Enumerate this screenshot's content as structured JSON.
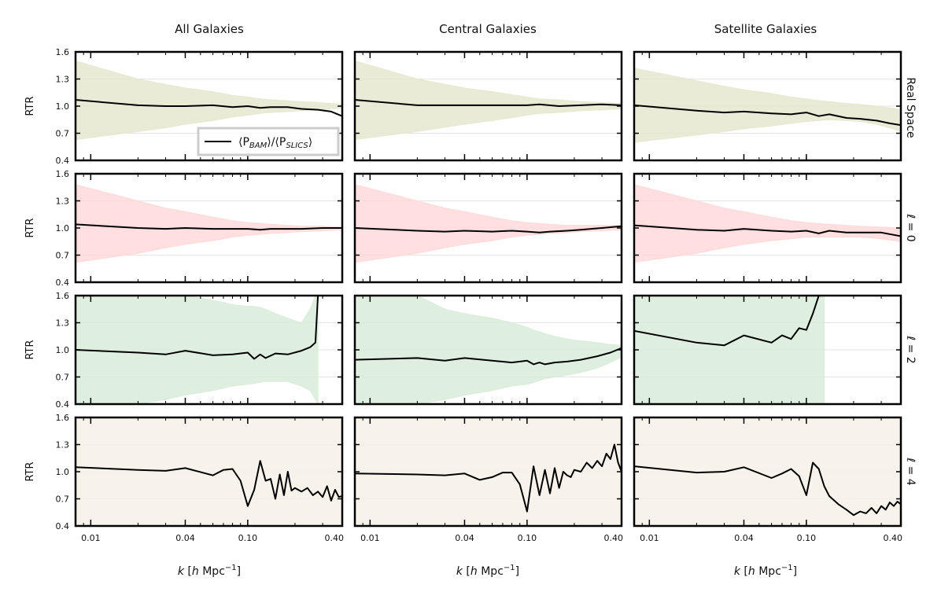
{
  "chart_data": {
    "type": "line",
    "figure": "ratio-grid",
    "columns": [
      "All Galaxies",
      "Central Galaxies",
      "Satellite Galaxies"
    ],
    "rows": [
      "Real Space",
      "ℓ = 0",
      "ℓ = 2",
      "ℓ = 4"
    ],
    "ylabel": "RTR",
    "xlabel": "k [h Mpc⁻¹]",
    "xlabel_parts": {
      "k": "k",
      "rest": " [",
      "h": "h",
      "unit": " Mpc",
      "exp": "−1",
      "close": "]"
    },
    "xscale": "log",
    "xlim": [
      0.008,
      0.4
    ],
    "ylim": [
      0.4,
      1.6
    ],
    "xticks": [
      0.01,
      0.04,
      0.1,
      0.4
    ],
    "xtick_labels": [
      "0.01",
      "0.04",
      "0.10",
      "0.40"
    ],
    "yticks": [
      0.4,
      0.7,
      1.0,
      1.3,
      1.6
    ],
    "ytick_labels": [
      "0.4",
      "0.7",
      "1.0",
      "1.3",
      "1.6"
    ],
    "band_colors": [
      "#e6e8d0",
      "#ffd9d9",
      "#d9ecd9",
      "#f6f1e8"
    ],
    "legend": {
      "position": "lower-right of top-left panel",
      "parts": [
        "⟨P",
        "BAM",
        "⟩/⟨P",
        "SLICS",
        "⟩"
      ],
      "label": "⟨P_BAM⟩/⟨P_SLICS⟩"
    },
    "panels": [
      [
        {
          "x": [
            0.008,
            0.02,
            0.03,
            0.04,
            0.06,
            0.08,
            0.1,
            0.12,
            0.14,
            0.18,
            0.22,
            0.28,
            0.34,
            0.4
          ],
          "y": [
            1.07,
            1.01,
            1.0,
            1.0,
            1.01,
            0.99,
            1.0,
            0.98,
            0.99,
            0.99,
            0.97,
            0.96,
            0.94,
            0.89
          ],
          "band_upper": [
            1.5,
            1.3,
            1.24,
            1.2,
            1.16,
            1.12,
            1.1,
            1.08,
            1.07,
            1.06,
            1.05,
            1.04,
            1.03,
            1.02
          ],
          "band_lower": [
            0.63,
            0.72,
            0.76,
            0.8,
            0.84,
            0.88,
            0.9,
            0.92,
            0.93,
            0.94,
            0.95,
            0.96,
            0.97,
            0.98
          ]
        },
        {
          "x": [
            0.008,
            0.02,
            0.04,
            0.06,
            0.1,
            0.12,
            0.16,
            0.22,
            0.3,
            0.4
          ],
          "y": [
            1.07,
            1.01,
            1.01,
            1.01,
            1.01,
            1.02,
            1.0,
            1.01,
            1.02,
            1.01
          ],
          "band_upper": [
            1.5,
            1.3,
            1.2,
            1.16,
            1.1,
            1.08,
            1.07,
            1.05,
            1.04,
            1.03
          ],
          "band_lower": [
            0.63,
            0.72,
            0.8,
            0.84,
            0.9,
            0.92,
            0.93,
            0.95,
            0.96,
            0.97
          ]
        },
        {
          "x": [
            0.008,
            0.02,
            0.03,
            0.04,
            0.06,
            0.08,
            0.1,
            0.12,
            0.14,
            0.18,
            0.22,
            0.28,
            0.34,
            0.4
          ],
          "y": [
            1.01,
            0.95,
            0.93,
            0.94,
            0.92,
            0.91,
            0.93,
            0.89,
            0.91,
            0.87,
            0.86,
            0.84,
            0.81,
            0.79
          ],
          "band_upper": [
            1.42,
            1.28,
            1.22,
            1.18,
            1.14,
            1.1,
            1.08,
            1.06,
            1.05,
            1.03,
            1.02,
            1.0,
            0.98,
            0.96
          ],
          "band_lower": [
            0.6,
            0.68,
            0.72,
            0.75,
            0.78,
            0.81,
            0.83,
            0.84,
            0.85,
            0.84,
            0.83,
            0.8,
            0.76,
            0.72
          ]
        }
      ],
      [
        {
          "x": [
            0.008,
            0.02,
            0.03,
            0.04,
            0.06,
            0.08,
            0.1,
            0.12,
            0.14,
            0.18,
            0.22,
            0.3,
            0.4
          ],
          "y": [
            1.04,
            1.0,
            0.99,
            1.0,
            0.99,
            0.99,
            0.99,
            0.98,
            0.99,
            0.99,
            0.99,
            1.0,
            1.0
          ],
          "band_upper": [
            1.48,
            1.3,
            1.22,
            1.18,
            1.12,
            1.08,
            1.06,
            1.05,
            1.04,
            1.03,
            1.02,
            1.02,
            1.01
          ],
          "band_lower": [
            0.62,
            0.72,
            0.78,
            0.82,
            0.86,
            0.9,
            0.92,
            0.93,
            0.94,
            0.95,
            0.96,
            0.97,
            0.98
          ]
        },
        {
          "x": [
            0.008,
            0.02,
            0.03,
            0.04,
            0.06,
            0.08,
            0.1,
            0.12,
            0.14,
            0.18,
            0.22,
            0.3,
            0.4
          ],
          "y": [
            1.0,
            0.97,
            0.96,
            0.97,
            0.96,
            0.97,
            0.96,
            0.95,
            0.96,
            0.97,
            0.98,
            1.0,
            1.02
          ],
          "band_upper": [
            1.48,
            1.3,
            1.22,
            1.18,
            1.12,
            1.08,
            1.06,
            1.05,
            1.04,
            1.03,
            1.03,
            1.03,
            1.03
          ],
          "band_lower": [
            0.62,
            0.72,
            0.78,
            0.82,
            0.86,
            0.9,
            0.92,
            0.93,
            0.94,
            0.95,
            0.96,
            0.97,
            0.98
          ]
        },
        {
          "x": [
            0.008,
            0.02,
            0.03,
            0.04,
            0.06,
            0.08,
            0.1,
            0.12,
            0.14,
            0.18,
            0.22,
            0.3,
            0.4
          ],
          "y": [
            1.03,
            0.98,
            0.97,
            0.99,
            0.97,
            0.96,
            0.97,
            0.94,
            0.97,
            0.95,
            0.95,
            0.95,
            0.91
          ],
          "band_upper": [
            1.48,
            1.3,
            1.22,
            1.18,
            1.12,
            1.08,
            1.06,
            1.05,
            1.04,
            1.03,
            1.02,
            1.01,
            1.0
          ],
          "band_lower": [
            0.62,
            0.72,
            0.78,
            0.82,
            0.86,
            0.88,
            0.9,
            0.9,
            0.9,
            0.9,
            0.9,
            0.88,
            0.85
          ]
        }
      ],
      [
        {
          "x": [
            0.008,
            0.02,
            0.03,
            0.04,
            0.06,
            0.08,
            0.1,
            0.11,
            0.12,
            0.13,
            0.15,
            0.18,
            0.22,
            0.25,
            0.27,
            0.28
          ],
          "y": [
            1.0,
            0.97,
            0.95,
            0.99,
            0.94,
            0.95,
            0.97,
            0.9,
            0.95,
            0.91,
            0.96,
            0.95,
            0.99,
            1.03,
            1.08,
            1.6
          ],
          "band_upper": [
            1.6,
            1.6,
            1.6,
            1.6,
            1.55,
            1.5,
            1.48,
            1.48,
            1.47,
            1.45,
            1.4,
            1.35,
            1.3,
            1.45,
            1.6,
            1.6
          ],
          "band_lower": [
            0.4,
            0.4,
            0.45,
            0.5,
            0.55,
            0.6,
            0.62,
            0.63,
            0.64,
            0.65,
            0.65,
            0.65,
            0.6,
            0.55,
            0.45,
            0.4
          ]
        },
        {
          "x": [
            0.008,
            0.02,
            0.03,
            0.04,
            0.06,
            0.08,
            0.1,
            0.11,
            0.12,
            0.13,
            0.15,
            0.18,
            0.22,
            0.28,
            0.34,
            0.4
          ],
          "y": [
            0.89,
            0.91,
            0.88,
            0.91,
            0.88,
            0.86,
            0.88,
            0.84,
            0.86,
            0.84,
            0.86,
            0.87,
            0.89,
            0.93,
            0.97,
            1.02
          ],
          "band_upper": [
            1.6,
            1.6,
            1.45,
            1.4,
            1.35,
            1.3,
            1.25,
            1.22,
            1.2,
            1.18,
            1.15,
            1.12,
            1.1,
            1.08,
            1.06,
            1.05
          ],
          "band_lower": [
            0.4,
            0.4,
            0.45,
            0.5,
            0.55,
            0.6,
            0.62,
            0.64,
            0.66,
            0.68,
            0.7,
            0.72,
            0.75,
            0.8,
            0.86,
            0.92
          ]
        },
        {
          "x": [
            0.008,
            0.02,
            0.03,
            0.04,
            0.06,
            0.07,
            0.08,
            0.09,
            0.1,
            0.11,
            0.12,
            0.13
          ],
          "y": [
            1.21,
            1.08,
            1.05,
            1.16,
            1.08,
            1.16,
            1.12,
            1.24,
            1.22,
            1.4,
            1.6,
            1.6
          ],
          "band_upper": [
            1.6,
            1.6,
            1.6,
            1.6,
            1.6,
            1.6,
            1.6,
            1.6,
            1.6,
            1.6,
            1.6,
            1.6
          ],
          "band_lower": [
            0.4,
            0.4,
            0.4,
            0.4,
            0.4,
            0.4,
            0.4,
            0.4,
            0.4,
            0.4,
            0.4,
            0.4
          ]
        }
      ],
      [
        {
          "x": [
            0.008,
            0.02,
            0.03,
            0.04,
            0.06,
            0.07,
            0.08,
            0.09,
            0.1,
            0.11,
            0.12,
            0.13,
            0.14,
            0.15,
            0.16,
            0.17,
            0.18,
            0.19,
            0.2,
            0.22,
            0.24,
            0.26,
            0.28,
            0.3,
            0.32,
            0.34,
            0.36,
            0.38,
            0.4
          ],
          "y": [
            1.05,
            1.02,
            1.01,
            1.04,
            0.96,
            1.02,
            1.03,
            0.9,
            0.62,
            0.8,
            1.12,
            0.9,
            0.92,
            0.7,
            0.97,
            0.74,
            1.0,
            0.79,
            0.82,
            0.78,
            0.82,
            0.74,
            0.78,
            0.72,
            0.84,
            0.68,
            0.8,
            0.72,
            0.73
          ],
          "band_upper": [
            1.6,
            1.6,
            1.6,
            1.6,
            1.6,
            1.6,
            1.6,
            1.6,
            1.6,
            1.6,
            1.6,
            1.6,
            1.6,
            1.6,
            1.6,
            1.6,
            1.6,
            1.6,
            1.6,
            1.6,
            1.6,
            1.6,
            1.6,
            1.6,
            1.6,
            1.6,
            1.6,
            1.6,
            1.6
          ],
          "band_lower": [
            0.4,
            0.4,
            0.4,
            0.4,
            0.4,
            0.4,
            0.4,
            0.4,
            0.4,
            0.4,
            0.4,
            0.4,
            0.4,
            0.4,
            0.4,
            0.4,
            0.4,
            0.4,
            0.4,
            0.4,
            0.4,
            0.4,
            0.4,
            0.4,
            0.4,
            0.4,
            0.4,
            0.4,
            0.4
          ]
        },
        {
          "x": [
            0.008,
            0.02,
            0.03,
            0.04,
            0.05,
            0.06,
            0.07,
            0.08,
            0.09,
            0.1,
            0.11,
            0.12,
            0.13,
            0.14,
            0.15,
            0.16,
            0.17,
            0.18,
            0.19,
            0.2,
            0.22,
            0.24,
            0.26,
            0.28,
            0.3,
            0.32,
            0.34,
            0.36,
            0.38,
            0.4
          ],
          "y": [
            0.98,
            0.97,
            0.96,
            0.98,
            0.91,
            0.94,
            0.99,
            0.99,
            0.86,
            0.56,
            1.06,
            0.74,
            1.02,
            0.76,
            1.04,
            0.82,
            1.0,
            0.96,
            0.94,
            1.02,
            1.0,
            1.1,
            1.04,
            1.12,
            1.06,
            1.2,
            1.14,
            1.3,
            1.1,
            1.0
          ],
          "band_upper": [
            1.6,
            1.6,
            1.6,
            1.6,
            1.6,
            1.6,
            1.6,
            1.6,
            1.6,
            1.6,
            1.6,
            1.6,
            1.6,
            1.6,
            1.6,
            1.6,
            1.6,
            1.6,
            1.6,
            1.6,
            1.6,
            1.6,
            1.6,
            1.6,
            1.6,
            1.6,
            1.6,
            1.6,
            1.6,
            1.6
          ],
          "band_lower": [
            0.4,
            0.4,
            0.4,
            0.4,
            0.4,
            0.4,
            0.4,
            0.4,
            0.4,
            0.4,
            0.4,
            0.4,
            0.4,
            0.4,
            0.4,
            0.4,
            0.4,
            0.4,
            0.4,
            0.4,
            0.4,
            0.4,
            0.4,
            0.4,
            0.4,
            0.4,
            0.4,
            0.4,
            0.4,
            0.4
          ]
        },
        {
          "x": [
            0.008,
            0.02,
            0.03,
            0.04,
            0.06,
            0.07,
            0.08,
            0.09,
            0.1,
            0.11,
            0.12,
            0.13,
            0.14,
            0.16,
            0.18,
            0.2,
            0.22,
            0.24,
            0.26,
            0.28,
            0.3,
            0.32,
            0.34,
            0.36,
            0.38,
            0.4
          ],
          "y": [
            1.06,
            0.99,
            1.0,
            1.05,
            0.93,
            0.98,
            1.03,
            0.95,
            0.74,
            1.1,
            1.03,
            0.84,
            0.73,
            0.64,
            0.58,
            0.52,
            0.56,
            0.54,
            0.6,
            0.54,
            0.62,
            0.58,
            0.66,
            0.62,
            0.67,
            0.64
          ],
          "band_upper": [
            1.6,
            1.6,
            1.6,
            1.6,
            1.6,
            1.6,
            1.6,
            1.6,
            1.6,
            1.6,
            1.6,
            1.6,
            1.6,
            1.6,
            1.6,
            1.6,
            1.6,
            1.6,
            1.6,
            1.6,
            1.6,
            1.6,
            1.6,
            1.6,
            1.6,
            1.6
          ],
          "band_lower": [
            0.4,
            0.4,
            0.4,
            0.4,
            0.4,
            0.4,
            0.4,
            0.4,
            0.4,
            0.4,
            0.4,
            0.4,
            0.4,
            0.4,
            0.4,
            0.4,
            0.4,
            0.4,
            0.4,
            0.4,
            0.4,
            0.4,
            0.4,
            0.4,
            0.4,
            0.4
          ]
        }
      ]
    ]
  }
}
